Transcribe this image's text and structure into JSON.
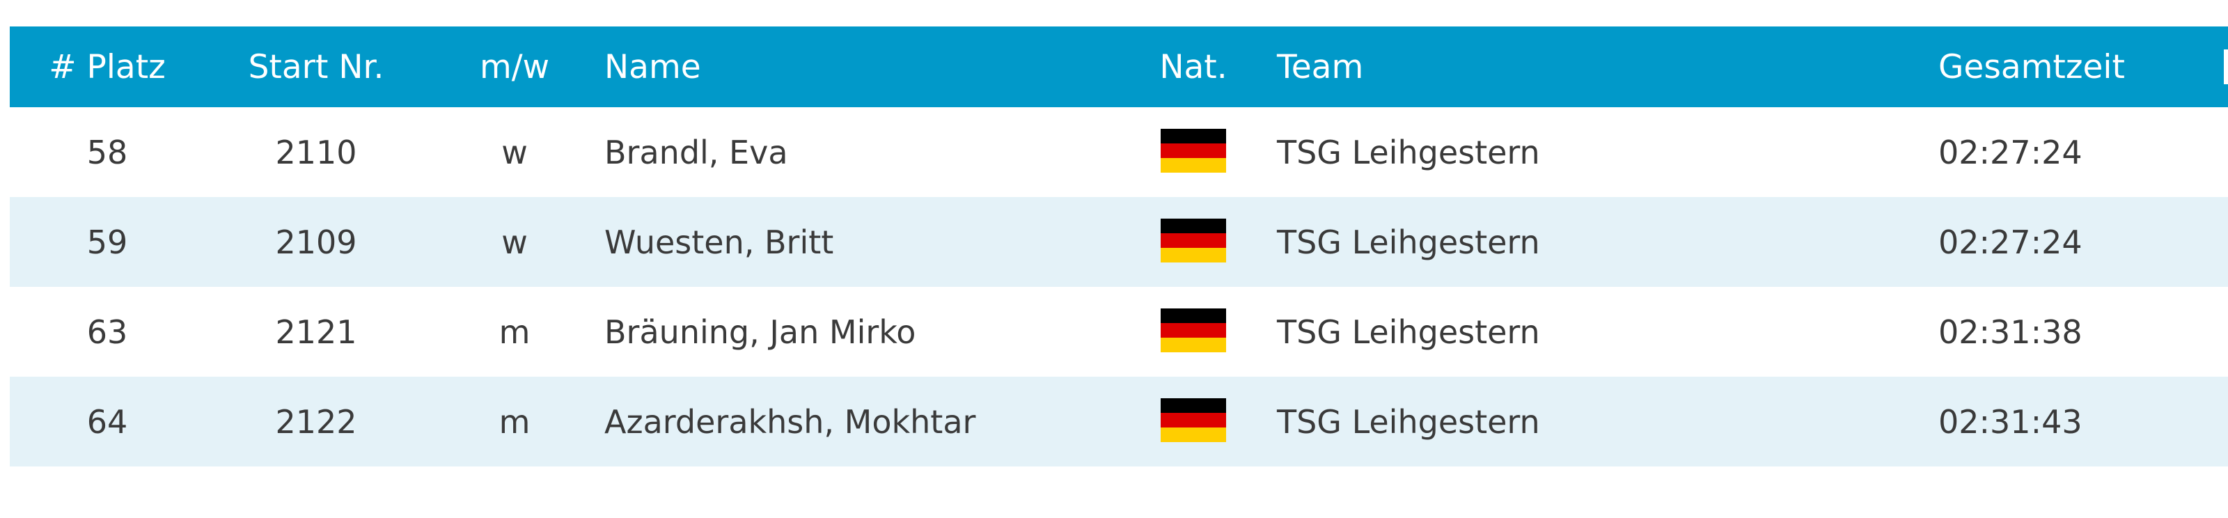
{
  "colors": {
    "header_bg": "#0199c9",
    "row_alt_bg": "#e4f2f8",
    "text": "#3a3a3a",
    "flag_de": [
      "#000000",
      "#dd0000",
      "#ffce00"
    ]
  },
  "table": {
    "headers": {
      "platz": "# Platz",
      "start_nr": "Start Nr.",
      "mw": "m/w",
      "name": "Name",
      "nat": "Nat.",
      "team": "Team",
      "gesamtzeit": "Gesamtzeit"
    },
    "rows": [
      {
        "platz": "58",
        "start_nr": "2110",
        "mw": "w",
        "name": "Brandl, Eva",
        "nat_icon": "flag-germany-icon",
        "team": "TSG Leihgestern",
        "gesamtzeit": "02:27:24"
      },
      {
        "platz": "59",
        "start_nr": "2109",
        "mw": "w",
        "name": "Wuesten, Britt",
        "nat_icon": "flag-germany-icon",
        "team": "TSG Leihgestern",
        "gesamtzeit": "02:27:24"
      },
      {
        "platz": "63",
        "start_nr": "2121",
        "mw": "m",
        "name": "Bräuning, Jan Mirko",
        "nat_icon": "flag-germany-icon",
        "team": "TSG Leihgestern",
        "gesamtzeit": "02:31:38"
      },
      {
        "platz": "64",
        "start_nr": "2122",
        "mw": "m",
        "name": "Azarderakhsh, Mokhtar",
        "nat_icon": "flag-germany-icon",
        "team": "TSG Leihgestern",
        "gesamtzeit": "02:31:43"
      }
    ]
  }
}
